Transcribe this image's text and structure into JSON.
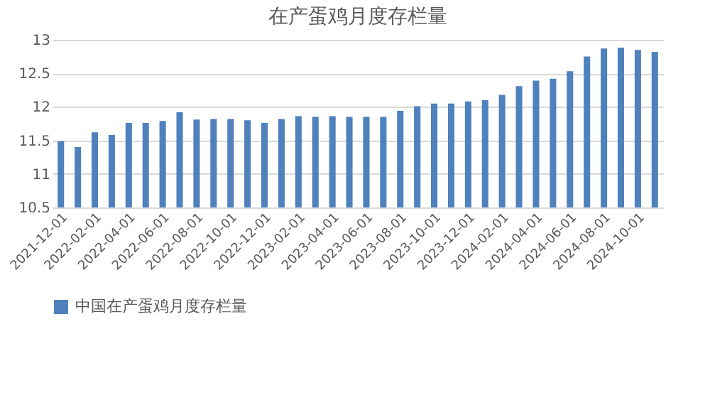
{
  "chart_data": {
    "type": "bar",
    "title": "在产蛋鸡月度存栏量",
    "categories": [
      "2021-12-01",
      null,
      "2022-02-01",
      null,
      "2022-04-01",
      null,
      "2022-06-01",
      null,
      "2022-08-01",
      null,
      "2022-10-01",
      null,
      "2022-12-01",
      null,
      "2023-02-01",
      null,
      "2023-04-01",
      null,
      "2023-06-01",
      null,
      "2023-08-01",
      null,
      "2023-10-01",
      null,
      "2023-12-01",
      null,
      "2024-02-01",
      null,
      "2024-04-01",
      null,
      "2024-06-01",
      null,
      "2024-08-01",
      null,
      "2024-10-01",
      null
    ],
    "series": [
      {
        "name": "中国在产蛋鸡月度存栏量",
        "color": "#4f81bd",
        "values": [
          11.49,
          11.4,
          11.62,
          11.58,
          11.76,
          11.76,
          11.79,
          11.92,
          11.81,
          11.82,
          11.82,
          11.8,
          11.76,
          11.82,
          11.86,
          11.85,
          11.86,
          11.85,
          11.85,
          11.85,
          11.94,
          12.01,
          12.05,
          12.05,
          12.08,
          12.1,
          12.18,
          12.31,
          12.39,
          12.42,
          12.53,
          12.75,
          12.87,
          12.88,
          12.85,
          12.82
        ]
      }
    ],
    "ylim": [
      10.5,
      13
    ],
    "yticks": [
      10.5,
      11,
      11.5,
      12,
      12.5,
      13
    ],
    "grid": "y",
    "legend": "bottom"
  }
}
